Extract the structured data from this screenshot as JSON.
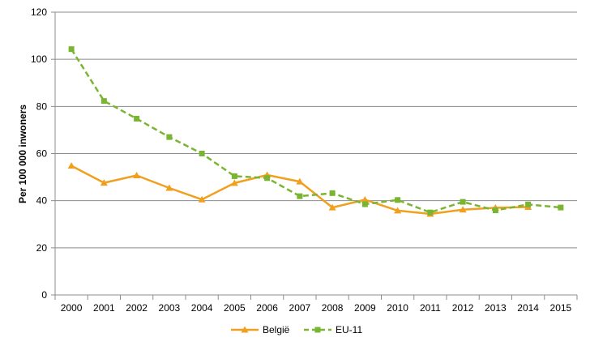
{
  "chart_data": {
    "type": "line",
    "title": "",
    "xlabel": "",
    "ylabel": "Per 100 000 inwoners",
    "ylim": [
      0,
      120
    ],
    "yticks": [
      0,
      20,
      40,
      60,
      80,
      100,
      120
    ],
    "grid": true,
    "legend_position": "bottom",
    "categories": [
      "2000",
      "2001",
      "2002",
      "2003",
      "2004",
      "2005",
      "2006",
      "2007",
      "2008",
      "2009",
      "2010",
      "2011",
      "2012",
      "2013",
      "2014",
      "2015"
    ],
    "series": [
      {
        "name": "België",
        "color": "#F0A01E",
        "marker": "triangle",
        "line_style": "solid",
        "values": [
          54.8,
          47.6,
          50.7,
          45.4,
          40.5,
          47.5,
          50.9,
          48.1,
          37.1,
          40.4,
          35.8,
          34.4,
          36.2,
          37.0,
          37.3,
          null
        ]
      },
      {
        "name": "EU-11",
        "color": "#7AB531",
        "marker": "square",
        "line_style": "dashed",
        "values": [
          104.3,
          82.3,
          74.8,
          67.0,
          60.0,
          50.4,
          49.6,
          41.9,
          43.2,
          38.5,
          40.3,
          35.0,
          39.5,
          35.9,
          38.4,
          37.1
        ]
      }
    ]
  }
}
